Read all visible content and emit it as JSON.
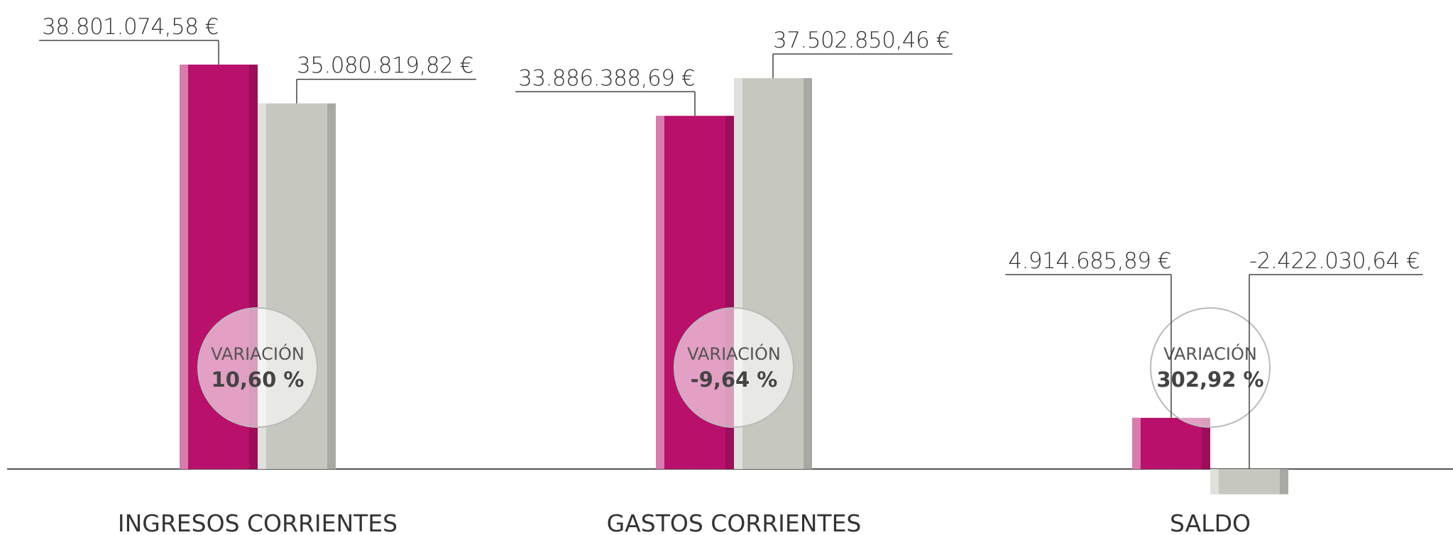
{
  "chart_data": {
    "type": "bar",
    "categories": [
      "INGRESOS CORRIENTES",
      "GASTOS CORRIENTES",
      "SALDO"
    ],
    "series": [
      {
        "color": "#b8106b",
        "values": [
          38801074.58,
          33886388.69,
          4914685.89
        ],
        "value_labels": [
          "38.801.074,58 €",
          "33.886.388,69 €",
          "4.914.685,89 €"
        ]
      },
      {
        "color": "#c6c7bf",
        "values": [
          35080819.82,
          37502850.46,
          -2422030.64
        ],
        "value_labels": [
          "35.080.819,82 €",
          "37.502.850,46 €",
          "-2.422.030,64 €"
        ]
      }
    ],
    "variation_label": "VARIACIÓN",
    "variations": [
      "10,60 %",
      "-9,64 %",
      "302,92 %"
    ],
    "ylim": [
      -5000000,
      45000000
    ]
  }
}
